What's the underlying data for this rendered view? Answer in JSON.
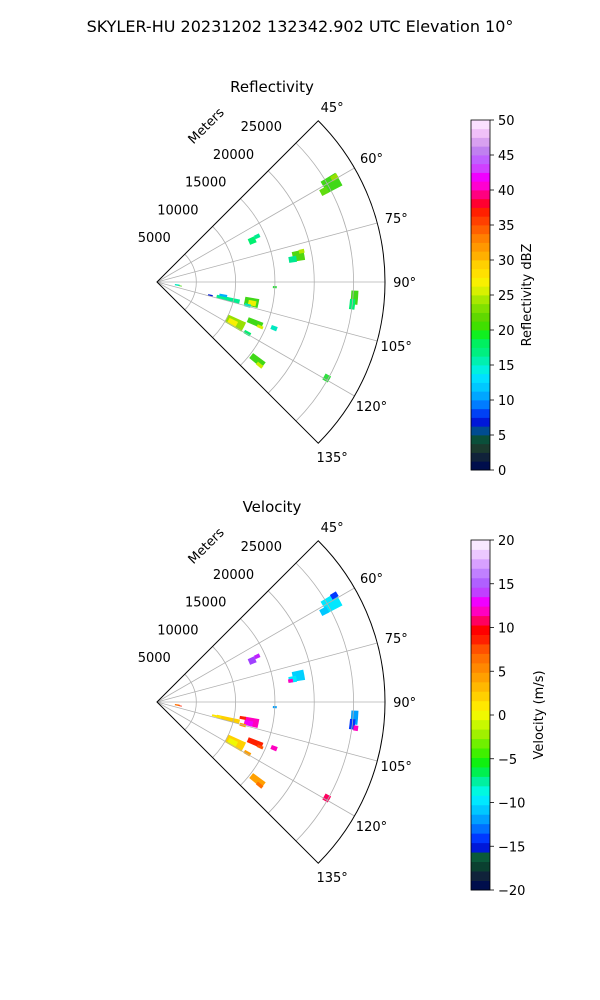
{
  "figure": {
    "suptitle": "SKYLER-HU  20231202  132342.902 UTC Elevation 10°"
  },
  "chart_data": [
    {
      "type": "heatmap",
      "subtype": "polar-sector-ppi",
      "title": "Reflectivity",
      "radial_label": "Meters",
      "theta_ticks": [
        45,
        60,
        75,
        90,
        105,
        120,
        135
      ],
      "theta_tick_labels": [
        "45°",
        "60°",
        "75°",
        "90°",
        "105°",
        "120°",
        "135°"
      ],
      "r_ticks": [
        5000,
        10000,
        15000,
        20000,
        25000
      ],
      "r_tick_labels": [
        "5000",
        "10000",
        "15000",
        "20000",
        "25000"
      ],
      "rlim": [
        0,
        29000
      ],
      "theta_range": [
        45,
        135
      ],
      "grid": true,
      "colorbar": {
        "label": "Reflectivity dBZ",
        "range": [
          0,
          50
        ],
        "ticks": [
          0,
          5,
          10,
          15,
          20,
          25,
          30,
          35,
          40,
          45,
          50
        ],
        "tick_labels": [
          "0",
          "5",
          "10",
          "15",
          "20",
          "25",
          "30",
          "35",
          "40",
          "45",
          "50"
        ],
        "colors": [
          "#000e4c",
          "#10223a",
          "#1b3a2e",
          "#0a4f3a",
          "#004c91",
          "#0018d8",
          "#0041f5",
          "#007cff",
          "#00a6ff",
          "#00c8ff",
          "#00e0ff",
          "#00f0e0",
          "#00f0b0",
          "#00ef80",
          "#00f060",
          "#10f020",
          "#40e000",
          "#60d800",
          "#80e000",
          "#a8e800",
          "#d8f000",
          "#f8f000",
          "#ffe000",
          "#ffd000",
          "#ffb000",
          "#ff9800",
          "#ff8000",
          "#ff6000",
          "#ff4000",
          "#ff2000",
          "#ff0030",
          "#ff0080",
          "#ff00d0",
          "#f000ff",
          "#d040ff",
          "#c060ff",
          "#c080f0",
          "#d8a0f0",
          "#f0c0f8",
          "#fbe0ff"
        ]
      },
      "cells": [
        {
          "theta": 60.5,
          "r": 25500,
          "dtheta": 4.0,
          "dr": 2200,
          "value": 20,
          "color": "#40d818"
        },
        {
          "theta": 61.5,
          "r": 24200,
          "dtheta": 2.0,
          "dr": 1000,
          "value": 19,
          "color": "#60dc10"
        },
        {
          "theta": 59.5,
          "r": 26200,
          "dtheta": 1.5,
          "dr": 900,
          "value": 22,
          "color": "#98e000"
        },
        {
          "theta": 66.5,
          "r": 13200,
          "dtheta": 3.5,
          "dr": 900,
          "value": 16,
          "color": "#00f070"
        },
        {
          "theta": 65.5,
          "r": 14000,
          "dtheta": 2.0,
          "dr": 700,
          "value": 15,
          "color": "#00ec90"
        },
        {
          "theta": 79.5,
          "r": 18300,
          "dtheta": 4.0,
          "dr": 1500,
          "value": 19,
          "color": "#50d810"
        },
        {
          "theta": 80.5,
          "r": 17500,
          "dtheta": 2.5,
          "dr": 1000,
          "value": 16,
          "color": "#00e890"
        },
        {
          "theta": 78.0,
          "r": 18800,
          "dtheta": 1.5,
          "dr": 700,
          "value": 22,
          "color": "#b0e800"
        },
        {
          "theta": 92.5,
          "r": 15000,
          "dtheta": 1.0,
          "dr": 500,
          "value": 18,
          "color": "#30e040"
        },
        {
          "theta": 94.5,
          "r": 25200,
          "dtheta": 4.0,
          "dr": 900,
          "value": 20,
          "color": "#40d818"
        },
        {
          "theta": 96.5,
          "r": 25000,
          "dtheta": 3.0,
          "dr": 700,
          "value": 16,
          "color": "#00f070"
        },
        {
          "theta": 98.5,
          "r": 2600,
          "dtheta": 4.0,
          "dr": 600,
          "value": 14,
          "color": "#00e8c0"
        },
        {
          "theta": 99.5,
          "r": 3000,
          "dtheta": 2.0,
          "dr": 400,
          "value": 19,
          "color": "#50d810"
        },
        {
          "theta": 103.5,
          "r": 9300,
          "dtheta": 3.0,
          "dr": 3000,
          "value": 15,
          "color": "#00f090"
        },
        {
          "theta": 104.0,
          "r": 7000,
          "dtheta": 1.5,
          "dr": 600,
          "value": 3,
          "color": "#0018d8"
        },
        {
          "theta": 101.5,
          "r": 8600,
          "dtheta": 2.0,
          "dr": 1000,
          "value": 10,
          "color": "#00b0ff"
        },
        {
          "theta": 102.0,
          "r": 12300,
          "dtheta": 5.0,
          "dr": 1800,
          "value": 20,
          "color": "#40d818"
        },
        {
          "theta": 102.5,
          "r": 12400,
          "dtheta": 3.0,
          "dr": 1000,
          "value": 25,
          "color": "#f0f000"
        },
        {
          "theta": 104.5,
          "r": 11900,
          "dtheta": 2.0,
          "dr": 800,
          "value": 14,
          "color": "#00e8c0"
        },
        {
          "theta": 112.5,
          "r": 13500,
          "dtheta": 3.0,
          "dr": 2000,
          "value": 20,
          "color": "#40d818"
        },
        {
          "theta": 113.5,
          "r": 14300,
          "dtheta": 1.5,
          "dr": 800,
          "value": 24,
          "color": "#d8f000"
        },
        {
          "theta": 111.5,
          "r": 16000,
          "dtheta": 2.0,
          "dr": 800,
          "value": 14,
          "color": "#00e8c0"
        },
        {
          "theta": 117.5,
          "r": 11200,
          "dtheta": 6.0,
          "dr": 2500,
          "value": 22,
          "color": "#98e000"
        },
        {
          "theta": 118.0,
          "r": 10900,
          "dtheta": 3.5,
          "dr": 1200,
          "value": 26,
          "color": "#f8f000"
        },
        {
          "theta": 119.5,
          "r": 13200,
          "dtheta": 2.0,
          "dr": 900,
          "value": 16,
          "color": "#00f070"
        },
        {
          "theta": 119.5,
          "r": 24800,
          "dtheta": 2.0,
          "dr": 800,
          "value": 18,
          "color": "#30e040"
        },
        {
          "theta": 128.0,
          "r": 16200,
          "dtheta": 3.0,
          "dr": 2000,
          "value": 20,
          "color": "#40d818"
        },
        {
          "theta": 129.0,
          "r": 16800,
          "dtheta": 1.5,
          "dr": 900,
          "value": 24,
          "color": "#c8ec00"
        }
      ]
    },
    {
      "type": "heatmap",
      "subtype": "polar-sector-ppi",
      "title": "Velocity",
      "radial_label": "Meters",
      "theta_ticks": [
        45,
        60,
        75,
        90,
        105,
        120,
        135
      ],
      "theta_tick_labels": [
        "45°",
        "60°",
        "75°",
        "90°",
        "105°",
        "120°",
        "135°"
      ],
      "r_ticks": [
        5000,
        10000,
        15000,
        20000,
        25000
      ],
      "r_tick_labels": [
        "5000",
        "10000",
        "15000",
        "20000",
        "25000"
      ],
      "rlim": [
        0,
        29000
      ],
      "theta_range": [
        45,
        135
      ],
      "grid": true,
      "colorbar": {
        "label": "Velocity (m/s)",
        "range": [
          -20,
          20
        ],
        "ticks": [
          -20,
          -15,
          -10,
          -5,
          0,
          5,
          10,
          15,
          20
        ],
        "tick_labels": [
          "−20",
          "−15",
          "−10",
          "−5",
          "0",
          "5",
          "10",
          "15",
          "20"
        ],
        "colors": [
          "#000e4c",
          "#10223a",
          "#0a4030",
          "#0a5a3a",
          "#0018d8",
          "#0038ff",
          "#0070ff",
          "#00a0ff",
          "#00c8ff",
          "#00e8ff",
          "#00f8e0",
          "#00f0a0",
          "#00f050",
          "#10f010",
          "#40f000",
          "#70f000",
          "#a0f000",
          "#c8f800",
          "#f0f800",
          "#ffe800",
          "#ffd000",
          "#ffb800",
          "#ffa000",
          "#ff8800",
          "#ff7000",
          "#ff5000",
          "#ff2000",
          "#ff0000",
          "#ff0060",
          "#ff00c0",
          "#f000ff",
          "#c040ff",
          "#b060ff",
          "#c080ff",
          "#d8a0ff",
          "#ecc8ff",
          "#f8e8ff"
        ]
      },
      "cells": [
        {
          "theta": 60.5,
          "r": 25500,
          "dtheta": 4.0,
          "dr": 2200,
          "value": -11,
          "color": "#00e8ff"
        },
        {
          "theta": 61.5,
          "r": 24200,
          "dtheta": 2.0,
          "dr": 1000,
          "value": -12,
          "color": "#00c8ff"
        },
        {
          "theta": 59.0,
          "r": 26300,
          "dtheta": 1.5,
          "dr": 900,
          "value": -16,
          "color": "#0038ff"
        },
        {
          "theta": 66.5,
          "r": 13200,
          "dtheta": 3.5,
          "dr": 900,
          "value": 14,
          "color": "#a040ff"
        },
        {
          "theta": 65.5,
          "r": 14000,
          "dtheta": 2.0,
          "dr": 700,
          "value": 13,
          "color": "#c020ff"
        },
        {
          "theta": 79.5,
          "r": 18300,
          "dtheta": 4.0,
          "dr": 1500,
          "value": -12,
          "color": "#00d0ff"
        },
        {
          "theta": 80.5,
          "r": 17500,
          "dtheta": 2.5,
          "dr": 1000,
          "value": -11,
          "color": "#00e8ff"
        },
        {
          "theta": 81.0,
          "r": 17200,
          "dtheta": 1.5,
          "dr": 600,
          "value": 12,
          "color": "#ff00c0"
        },
        {
          "theta": 92.5,
          "r": 15000,
          "dtheta": 1.0,
          "dr": 500,
          "value": -14,
          "color": "#00a0ff"
        },
        {
          "theta": 94.5,
          "r": 25200,
          "dtheta": 4.0,
          "dr": 900,
          "value": -14,
          "color": "#00a0ff"
        },
        {
          "theta": 96.5,
          "r": 25000,
          "dtheta": 3.0,
          "dr": 700,
          "value": -16,
          "color": "#0038ff"
        },
        {
          "theta": 97.5,
          "r": 25500,
          "dtheta": 1.5,
          "dr": 600,
          "value": 13,
          "color": "#ff00c0"
        },
        {
          "theta": 98.5,
          "r": 2600,
          "dtheta": 4.0,
          "dr": 600,
          "value": 8,
          "color": "#ff7000"
        },
        {
          "theta": 99.5,
          "r": 3000,
          "dtheta": 2.0,
          "dr": 400,
          "value": 10,
          "color": "#ff2000"
        },
        {
          "theta": 103.5,
          "r": 9300,
          "dtheta": 3.0,
          "dr": 3000,
          "value": 2,
          "color": "#ffd000"
        },
        {
          "theta": 103.5,
          "r": 7800,
          "dtheta": 2.0,
          "dr": 1200,
          "value": 1,
          "color": "#ffe800"
        },
        {
          "theta": 102.0,
          "r": 12300,
          "dtheta": 5.0,
          "dr": 1800,
          "value": 12,
          "color": "#ff00c0"
        },
        {
          "theta": 103.0,
          "r": 12000,
          "dtheta": 3.0,
          "dr": 1000,
          "value": 14,
          "color": "#f000ff"
        },
        {
          "theta": 100.5,
          "r": 11100,
          "dtheta": 2.0,
          "dr": 800,
          "value": 10,
          "color": "#ff2000"
        },
        {
          "theta": 105.0,
          "r": 11300,
          "dtheta": 2.0,
          "dr": 800,
          "value": 5,
          "color": "#ffa000"
        },
        {
          "theta": 112.5,
          "r": 13500,
          "dtheta": 3.0,
          "dr": 2000,
          "value": 10,
          "color": "#ff2000"
        },
        {
          "theta": 113.5,
          "r": 14300,
          "dtheta": 1.5,
          "dr": 800,
          "value": 9,
          "color": "#ff5000"
        },
        {
          "theta": 111.5,
          "r": 16000,
          "dtheta": 2.0,
          "dr": 800,
          "value": 12,
          "color": "#ff00c0"
        },
        {
          "theta": 117.5,
          "r": 11200,
          "dtheta": 6.0,
          "dr": 2500,
          "value": 3,
          "color": "#ffd000"
        },
        {
          "theta": 118.0,
          "r": 10900,
          "dtheta": 3.5,
          "dr": 1200,
          "value": 2,
          "color": "#f0f800"
        },
        {
          "theta": 119.5,
          "r": 13200,
          "dtheta": 2.0,
          "dr": 900,
          "value": 5,
          "color": "#ffa000"
        },
        {
          "theta": 119.5,
          "r": 24800,
          "dtheta": 2.0,
          "dr": 800,
          "value": 11,
          "color": "#ff0060"
        },
        {
          "theta": 128.0,
          "r": 16200,
          "dtheta": 3.0,
          "dr": 2000,
          "value": 6,
          "color": "#ffa000"
        },
        {
          "theta": 129.0,
          "r": 16800,
          "dtheta": 1.5,
          "dr": 900,
          "value": 8,
          "color": "#ff7000"
        }
      ]
    }
  ]
}
